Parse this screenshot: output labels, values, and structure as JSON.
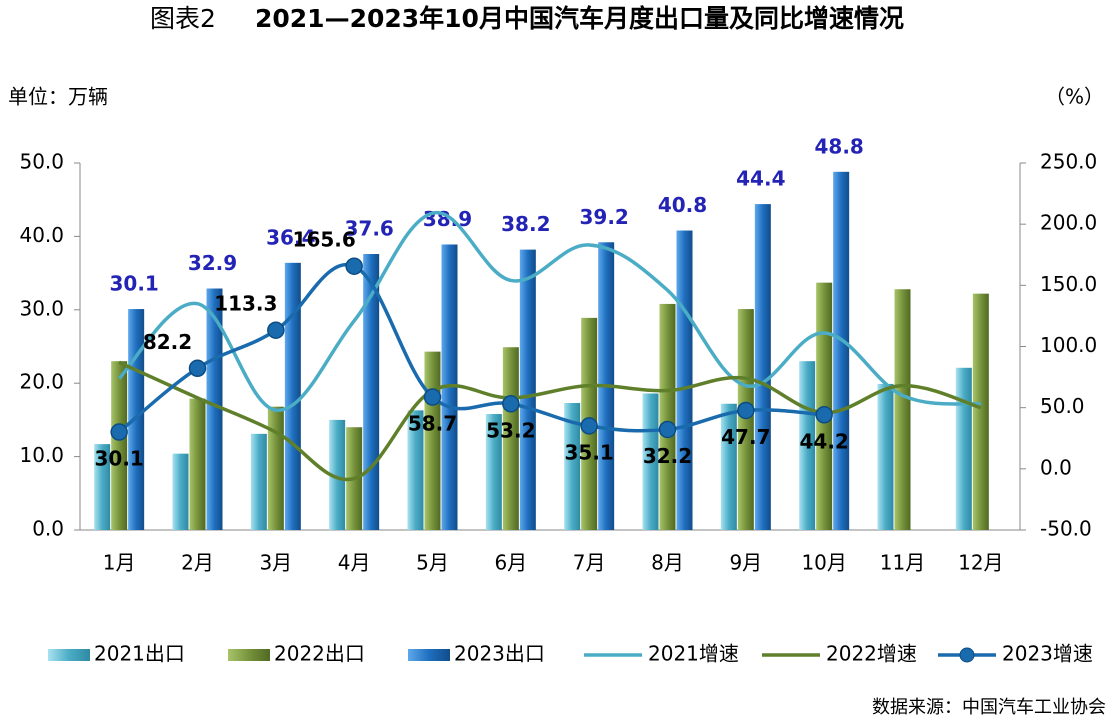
{
  "chart_data": {
    "type": "bar",
    "figure_label": "图表2",
    "title": "2021—2023年10月中国汽车月度出口量及同比增速情况",
    "y_unit": "单位：万辆",
    "y2_unit": "（%）",
    "source": "数据来源：中国汽车工业协会",
    "categories": [
      "1月",
      "2月",
      "3月",
      "4月",
      "5月",
      "6月",
      "7月",
      "8月",
      "9月",
      "10月",
      "11月",
      "12月"
    ],
    "ylim": [
      0,
      50
    ],
    "yticks": [
      {
        "value": 0,
        "label": "0.0"
      },
      {
        "value": 10,
        "label": "10.0"
      },
      {
        "value": 20,
        "label": "20.0"
      },
      {
        "value": 30,
        "label": "30.0"
      },
      {
        "value": 40,
        "label": "40.0"
      },
      {
        "value": 50,
        "label": "50.0"
      }
    ],
    "y2lim": [
      -50,
      250
    ],
    "y2ticks": [
      {
        "value": -50,
        "label": "-50.0"
      },
      {
        "value": 0,
        "label": "0.0"
      },
      {
        "value": 50,
        "label": "50.0"
      },
      {
        "value": 100,
        "label": "100.0"
      },
      {
        "value": 150,
        "label": "150.0"
      },
      {
        "value": 200,
        "label": "200.0"
      },
      {
        "value": 250,
        "label": "250.0"
      }
    ],
    "series": [
      {
        "name": "2021出口",
        "type": "bar",
        "color": "#4bacc6",
        "values": [
          11.7,
          10.4,
          13.1,
          15.0,
          16.3,
          15.8,
          17.3,
          18.6,
          17.2,
          23.0,
          19.9,
          22.1
        ]
      },
      {
        "name": "2022出口",
        "type": "bar",
        "color": "#77933c",
        "values": [
          23.0,
          17.9,
          16.8,
          14.0,
          24.3,
          24.9,
          28.9,
          30.8,
          30.1,
          33.7,
          32.8,
          32.2
        ]
      },
      {
        "name": "2023出口",
        "type": "bar",
        "color": "#1f6fbf",
        "values": [
          30.1,
          32.9,
          36.4,
          37.6,
          38.9,
          38.2,
          39.2,
          40.8,
          44.4,
          48.8,
          null,
          null
        ],
        "show_labels": true
      },
      {
        "name": "2021增速",
        "type": "line",
        "axis": "y2",
        "color": "#4bacc6",
        "values": [
          74,
          135,
          48,
          121,
          209,
          154,
          183,
          146,
          68,
          111,
          60,
          53
        ]
      },
      {
        "name": "2022增速",
        "type": "line",
        "axis": "y2",
        "color": "#5f7f2a",
        "values": [
          87,
          58,
          30,
          -8,
          64,
          58,
          68,
          64,
          74,
          46,
          68,
          50
        ]
      },
      {
        "name": "2023增速",
        "type": "line",
        "axis": "y2",
        "color": "#1a6bae",
        "markers": true,
        "values": [
          30.1,
          82.2,
          113.3,
          165.6,
          58.7,
          53.2,
          35.1,
          32.2,
          47.7,
          44.2,
          null,
          null
        ],
        "show_labels": true
      }
    ]
  }
}
